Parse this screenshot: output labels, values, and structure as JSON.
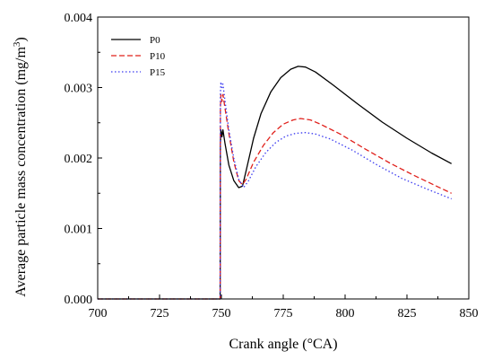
{
  "chart_data": {
    "type": "line",
    "title": "",
    "xlabel": "Crank angle (°CA)",
    "ylabel_main": "Average particle mass concentration (mg/m",
    "ylabel_sup": "3",
    "ylabel_close": ")",
    "xlim": [
      700,
      850
    ],
    "ylim": [
      0.0,
      0.004
    ],
    "xticks": [
      700,
      725,
      750,
      775,
      800,
      825,
      850
    ],
    "yticks": [
      0.0,
      0.001,
      0.002,
      0.003,
      0.004
    ],
    "xtick_labels": [
      "700",
      "725",
      "750",
      "775",
      "800",
      "825",
      "850"
    ],
    "ytick_labels": [
      "0.000",
      "0.001",
      "0.002",
      "0.003",
      "0.004"
    ],
    "grid": false,
    "legend_position": "top-left",
    "series": [
      {
        "name": "P0",
        "color": "#000000",
        "dash": "solid",
        "points": [
          [
            700,
            0
          ],
          [
            749.5,
            0
          ],
          [
            749.6,
            0.0022
          ],
          [
            749.8,
            0.0024
          ],
          [
            750.2,
            0.0023
          ],
          [
            750.6,
            0.0024
          ],
          [
            751.5,
            0.0022
          ],
          [
            753,
            0.0019
          ],
          [
            755,
            0.00168
          ],
          [
            757,
            0.00158
          ],
          [
            758.5,
            0.0016
          ],
          [
            760,
            0.00182
          ],
          [
            763,
            0.00228
          ],
          [
            766,
            0.00263
          ],
          [
            770,
            0.00294
          ],
          [
            774,
            0.00314
          ],
          [
            778,
            0.00326
          ],
          [
            781,
            0.0033
          ],
          [
            784,
            0.00329
          ],
          [
            788,
            0.00322
          ],
          [
            795,
            0.00304
          ],
          [
            805,
            0.00277
          ],
          [
            815,
            0.00251
          ],
          [
            825,
            0.00228
          ],
          [
            835,
            0.00207
          ],
          [
            843,
            0.00192
          ]
        ]
      },
      {
        "name": "P10",
        "color": "#e0201b",
        "dash": "dashed",
        "points": [
          [
            700,
            0
          ],
          [
            749.5,
            0
          ],
          [
            749.6,
            0.0027
          ],
          [
            749.8,
            0.0029
          ],
          [
            750.2,
            0.0028
          ],
          [
            750.6,
            0.0029
          ],
          [
            751.5,
            0.0027
          ],
          [
            753,
            0.00235
          ],
          [
            755,
            0.00195
          ],
          [
            757,
            0.00168
          ],
          [
            758.5,
            0.00162
          ],
          [
            760,
            0.0017
          ],
          [
            763,
            0.00194
          ],
          [
            767,
            0.00218
          ],
          [
            771,
            0.00236
          ],
          [
            775,
            0.00248
          ],
          [
            779,
            0.00254
          ],
          [
            782,
            0.00256
          ],
          [
            786,
            0.00254
          ],
          [
            790,
            0.00248
          ],
          [
            798,
            0.00234
          ],
          [
            808,
            0.00213
          ],
          [
            818,
            0.00193
          ],
          [
            828,
            0.00175
          ],
          [
            837,
            0.0016
          ],
          [
            843,
            0.0015
          ]
        ]
      },
      {
        "name": "P15",
        "color": "#3a3af0",
        "dash": "dotted",
        "points": [
          [
            700,
            0
          ],
          [
            749.5,
            0
          ],
          [
            749.6,
            0.0029
          ],
          [
            749.8,
            0.00308
          ],
          [
            750.2,
            0.003
          ],
          [
            750.6,
            0.00305
          ],
          [
            751.5,
            0.0028
          ],
          [
            753,
            0.0024
          ],
          [
            755,
            0.002
          ],
          [
            757,
            0.0017
          ],
          [
            759,
            0.00158
          ],
          [
            761,
            0.00168
          ],
          [
            764,
            0.00188
          ],
          [
            768,
            0.00208
          ],
          [
            772,
            0.00222
          ],
          [
            776,
            0.00231
          ],
          [
            780,
            0.00235
          ],
          [
            784,
            0.00236
          ],
          [
            788,
            0.00234
          ],
          [
            794,
            0.00227
          ],
          [
            803,
            0.00211
          ],
          [
            813,
            0.0019
          ],
          [
            823,
            0.00171
          ],
          [
            833,
            0.00156
          ],
          [
            843,
            0.00142
          ]
        ]
      }
    ]
  }
}
